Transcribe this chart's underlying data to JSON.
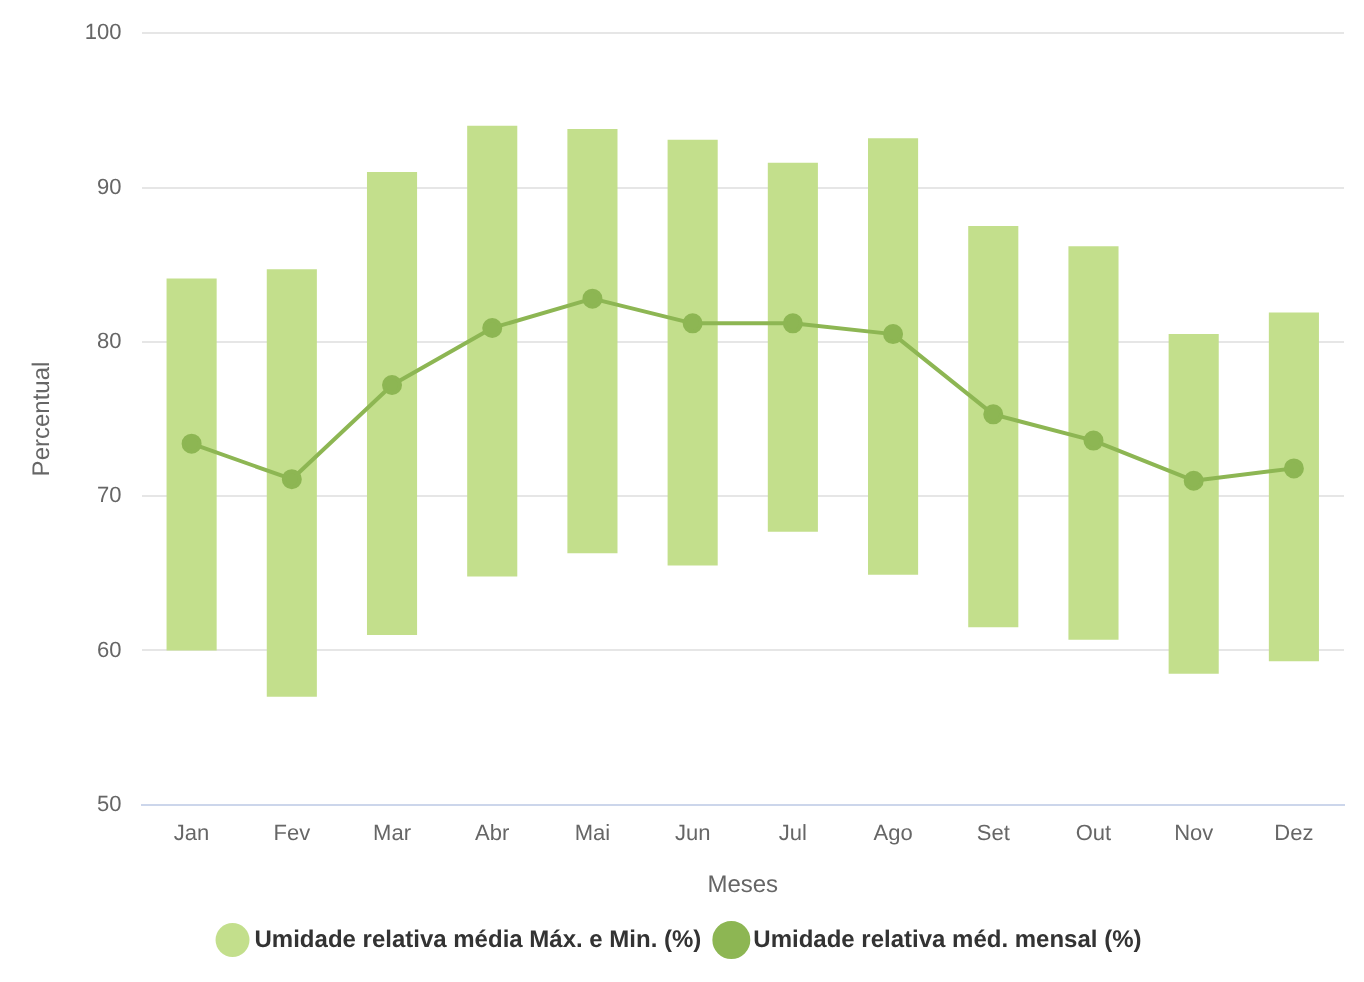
{
  "chart_data": {
    "type": "bar",
    "xlabel": "Meses",
    "ylabel": "Percentual",
    "categories": [
      "Jan",
      "Fev",
      "Mar",
      "Abr",
      "Mai",
      "Jun",
      "Jul",
      "Ago",
      "Set",
      "Out",
      "Nov",
      "Dez"
    ],
    "series": [
      {
        "name": "Umidade relativa média Máx. e Min. (%)",
        "color": "#c3df8c",
        "base": [
          60,
          57,
          61,
          64.8,
          66.3,
          65.5,
          67.7,
          64.9,
          61.5,
          60.7,
          58.5,
          59.3
        ],
        "values": [
          24.1,
          27.7,
          30,
          29.2,
          27.5,
          27.6,
          23.9,
          28.3,
          26,
          25.5,
          22,
          22.6
        ]
      },
      {
        "name": "Umidade relativa méd. mensal (%)",
        "type": "line",
        "color": "#8db653",
        "marker": "circle",
        "values": [
          73.4,
          71.1,
          77.2,
          80.9,
          82.8,
          81.2,
          81.2,
          80.5,
          75.3,
          73.6,
          71,
          71.8
        ]
      }
    ],
    "ylim": [
      50,
      100
    ],
    "yticks": [
      50,
      60,
      70,
      80,
      90,
      100
    ],
    "grid": "y",
    "legend": "bottom"
  }
}
